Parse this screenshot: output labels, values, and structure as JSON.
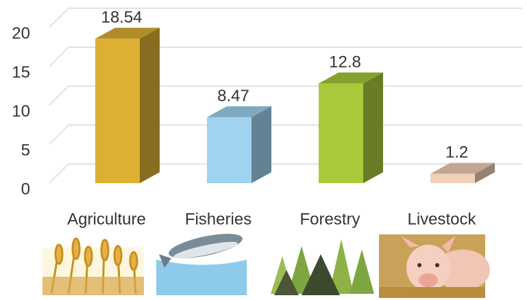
{
  "chart_data": {
    "type": "bar3d",
    "categories": [
      "Agriculture",
      "Fisheries",
      "Forestry",
      "Livestock"
    ],
    "values": [
      18.54,
      8.47,
      12.8,
      1.2
    ],
    "colors": [
      "#dcb033",
      "#9fd3f0",
      "#a8c93a",
      "#f2d0b8"
    ],
    "ylim": [
      0,
      20
    ],
    "yticks": [
      0,
      5,
      10,
      15,
      20
    ],
    "grid": true
  }
}
